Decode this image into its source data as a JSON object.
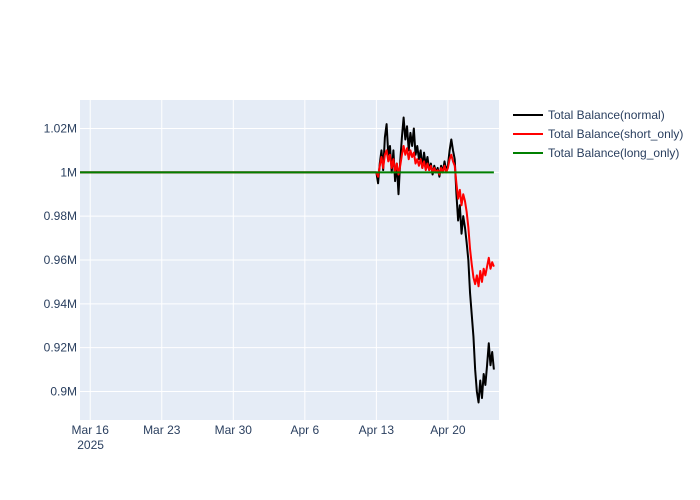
{
  "chart_data": {
    "type": "line",
    "x_type": "date",
    "xlim": [
      "2025-03-15",
      "2025-04-25"
    ],
    "ylim": [
      887000,
      1033000
    ],
    "grid": true,
    "legend_position": "top-right, outside plot",
    "x_ticks": [
      {
        "date": "2025-03-16",
        "label": "Mar 16",
        "sublabel": "2025"
      },
      {
        "date": "2025-03-23",
        "label": "Mar 23"
      },
      {
        "date": "2025-03-30",
        "label": "Mar 30"
      },
      {
        "date": "2025-04-06",
        "label": "Apr 6"
      },
      {
        "date": "2025-04-13",
        "label": "Apr 13"
      },
      {
        "date": "2025-04-20",
        "label": "Apr 20"
      }
    ],
    "y_ticks": [
      {
        "value": 900000,
        "label": "0.9M"
      },
      {
        "value": 920000,
        "label": "0.92M"
      },
      {
        "value": 940000,
        "label": "0.94M"
      },
      {
        "value": 960000,
        "label": "0.96M"
      },
      {
        "value": 980000,
        "label": "0.98M"
      },
      {
        "value": 1000000,
        "label": "1M"
      },
      {
        "value": 1020000,
        "label": "1.02M"
      }
    ],
    "series": [
      {
        "name": "Total Balance(normal)",
        "color": "#000000",
        "points": [
          [
            "2025-03-15T00:00",
            1000000
          ],
          [
            "2025-04-13T00:00",
            1000000
          ],
          [
            "2025-04-13T04:00",
            995000
          ],
          [
            "2025-04-13T08:00",
            1004000
          ],
          [
            "2025-04-13T12:00",
            1010000
          ],
          [
            "2025-04-13T16:00",
            1001000
          ],
          [
            "2025-04-13T20:00",
            1016000
          ],
          [
            "2025-04-14T00:00",
            1022000
          ],
          [
            "2025-04-14T04:00",
            1008000
          ],
          [
            "2025-04-14T08:00",
            1012000
          ],
          [
            "2025-04-14T12:00",
            1000000
          ],
          [
            "2025-04-14T16:00",
            1010000
          ],
          [
            "2025-04-14T20:00",
            996000
          ],
          [
            "2025-04-15T00:00",
            1004000
          ],
          [
            "2025-04-15T04:00",
            990000
          ],
          [
            "2025-04-15T08:00",
            1005000
          ],
          [
            "2025-04-15T12:00",
            1016000
          ],
          [
            "2025-04-15T16:00",
            1025000
          ],
          [
            "2025-04-15T20:00",
            1015000
          ],
          [
            "2025-04-16T00:00",
            1021000
          ],
          [
            "2025-04-16T04:00",
            1010000
          ],
          [
            "2025-04-16T08:00",
            1018000
          ],
          [
            "2025-04-16T12:00",
            1012000
          ],
          [
            "2025-04-16T16:00",
            1020000
          ],
          [
            "2025-04-16T20:00",
            1008000
          ],
          [
            "2025-04-17T00:00",
            1012000
          ],
          [
            "2025-04-17T04:00",
            1006000
          ],
          [
            "2025-04-17T08:00",
            1010000
          ],
          [
            "2025-04-17T12:00",
            1002000
          ],
          [
            "2025-04-17T16:00",
            1009000
          ],
          [
            "2025-04-17T20:00",
            1003000
          ],
          [
            "2025-04-18T00:00",
            1007000
          ],
          [
            "2025-04-18T04:00",
            1001000
          ],
          [
            "2025-04-18T08:00",
            1004000
          ],
          [
            "2025-04-18T12:00",
            999000
          ],
          [
            "2025-04-18T16:00",
            1003000
          ],
          [
            "2025-04-18T20:00",
            1000000
          ],
          [
            "2025-04-19T00:00",
            1002000
          ],
          [
            "2025-04-19T04:00",
            998000
          ],
          [
            "2025-04-19T08:00",
            1003000
          ],
          [
            "2025-04-19T12:00",
            1000000
          ],
          [
            "2025-04-19T16:00",
            1005000
          ],
          [
            "2025-04-19T20:00",
            1001000
          ],
          [
            "2025-04-20T00:00",
            1003000
          ],
          [
            "2025-04-20T04:00",
            1010000
          ],
          [
            "2025-04-20T08:00",
            1015000
          ],
          [
            "2025-04-20T12:00",
            1010000
          ],
          [
            "2025-04-20T16:00",
            1006000
          ],
          [
            "2025-04-20T20:00",
            990000
          ],
          [
            "2025-04-21T00:00",
            978000
          ],
          [
            "2025-04-21T04:00",
            985000
          ],
          [
            "2025-04-21T08:00",
            972000
          ],
          [
            "2025-04-21T12:00",
            980000
          ],
          [
            "2025-04-21T16:00",
            975000
          ],
          [
            "2025-04-21T20:00",
            968000
          ],
          [
            "2025-04-22T00:00",
            960000
          ],
          [
            "2025-04-22T04:00",
            945000
          ],
          [
            "2025-04-22T08:00",
            935000
          ],
          [
            "2025-04-22T12:00",
            925000
          ],
          [
            "2025-04-22T16:00",
            910000
          ],
          [
            "2025-04-22T20:00",
            900000
          ],
          [
            "2025-04-23T00:00",
            895000
          ],
          [
            "2025-04-23T04:00",
            905000
          ],
          [
            "2025-04-23T08:00",
            897000
          ],
          [
            "2025-04-23T12:00",
            908000
          ],
          [
            "2025-04-23T16:00",
            903000
          ],
          [
            "2025-04-23T20:00",
            912000
          ],
          [
            "2025-04-24T00:00",
            922000
          ],
          [
            "2025-04-24T04:00",
            912000
          ],
          [
            "2025-04-24T08:00",
            918000
          ],
          [
            "2025-04-24T12:00",
            910000
          ]
        ]
      },
      {
        "name": "Total Balance(short_only)",
        "color": "#ff0000",
        "points": [
          [
            "2025-03-15T00:00",
            1000000
          ],
          [
            "2025-04-13T00:00",
            1000000
          ],
          [
            "2025-04-13T04:00",
            998000
          ],
          [
            "2025-04-13T08:00",
            1003000
          ],
          [
            "2025-04-13T12:00",
            1007000
          ],
          [
            "2025-04-13T16:00",
            1002000
          ],
          [
            "2025-04-13T20:00",
            1008000
          ],
          [
            "2025-04-14T00:00",
            1010000
          ],
          [
            "2025-04-14T04:00",
            1005000
          ],
          [
            "2025-04-14T08:00",
            1008000
          ],
          [
            "2025-04-14T12:00",
            1002000
          ],
          [
            "2025-04-14T16:00",
            1006000
          ],
          [
            "2025-04-14T20:00",
            1000000
          ],
          [
            "2025-04-15T00:00",
            1004000
          ],
          [
            "2025-04-15T04:00",
            999000
          ],
          [
            "2025-04-15T08:00",
            1003000
          ],
          [
            "2025-04-15T12:00",
            1008000
          ],
          [
            "2025-04-15T16:00",
            1012000
          ],
          [
            "2025-04-15T20:00",
            1008000
          ],
          [
            "2025-04-16T00:00",
            1011000
          ],
          [
            "2025-04-16T04:00",
            1006000
          ],
          [
            "2025-04-16T08:00",
            1010000
          ],
          [
            "2025-04-16T12:00",
            1007000
          ],
          [
            "2025-04-16T16:00",
            1009000
          ],
          [
            "2025-04-16T20:00",
            1004000
          ],
          [
            "2025-04-17T00:00",
            1006000
          ],
          [
            "2025-04-17T04:00",
            1003000
          ],
          [
            "2025-04-17T08:00",
            1006000
          ],
          [
            "2025-04-17T12:00",
            1002000
          ],
          [
            "2025-04-17T16:00",
            1005000
          ],
          [
            "2025-04-17T20:00",
            1001000
          ],
          [
            "2025-04-18T00:00",
            1004000
          ],
          [
            "2025-04-18T04:00",
            1001000
          ],
          [
            "2025-04-18T08:00",
            1003000
          ],
          [
            "2025-04-18T12:00",
            1000000
          ],
          [
            "2025-04-18T16:00",
            1002000
          ],
          [
            "2025-04-18T20:00",
            1000000
          ],
          [
            "2025-04-19T00:00",
            1001000
          ],
          [
            "2025-04-19T04:00",
            999000
          ],
          [
            "2025-04-19T08:00",
            1002000
          ],
          [
            "2025-04-19T12:00",
            1000000
          ],
          [
            "2025-04-19T16:00",
            1003000
          ],
          [
            "2025-04-19T20:00",
            1000000
          ],
          [
            "2025-04-20T00:00",
            1002000
          ],
          [
            "2025-04-20T04:00",
            1006000
          ],
          [
            "2025-04-20T08:00",
            1008000
          ],
          [
            "2025-04-20T12:00",
            1005000
          ],
          [
            "2025-04-20T16:00",
            1003000
          ],
          [
            "2025-04-20T20:00",
            995000
          ],
          [
            "2025-04-21T00:00",
            988000
          ],
          [
            "2025-04-21T04:00",
            992000
          ],
          [
            "2025-04-21T08:00",
            985000
          ],
          [
            "2025-04-21T12:00",
            990000
          ],
          [
            "2025-04-21T16:00",
            987000
          ],
          [
            "2025-04-21T20:00",
            982000
          ],
          [
            "2025-04-22T00:00",
            975000
          ],
          [
            "2025-04-22T04:00",
            965000
          ],
          [
            "2025-04-22T08:00",
            958000
          ],
          [
            "2025-04-22T12:00",
            952000
          ],
          [
            "2025-04-22T16:00",
            949000
          ],
          [
            "2025-04-22T20:00",
            953000
          ],
          [
            "2025-04-23T00:00",
            948000
          ],
          [
            "2025-04-23T04:00",
            955000
          ],
          [
            "2025-04-23T08:00",
            950000
          ],
          [
            "2025-04-23T12:00",
            956000
          ],
          [
            "2025-04-23T16:00",
            953000
          ],
          [
            "2025-04-23T20:00",
            957000
          ],
          [
            "2025-04-24T00:00",
            961000
          ],
          [
            "2025-04-24T04:00",
            956000
          ],
          [
            "2025-04-24T08:00",
            959000
          ],
          [
            "2025-04-24T12:00",
            957000
          ]
        ]
      },
      {
        "name": "Total Balance(long_only)",
        "color": "#008000",
        "points": [
          [
            "2025-03-15T00:00",
            1000000
          ],
          [
            "2025-04-24T12:00",
            1000000
          ]
        ]
      }
    ]
  }
}
